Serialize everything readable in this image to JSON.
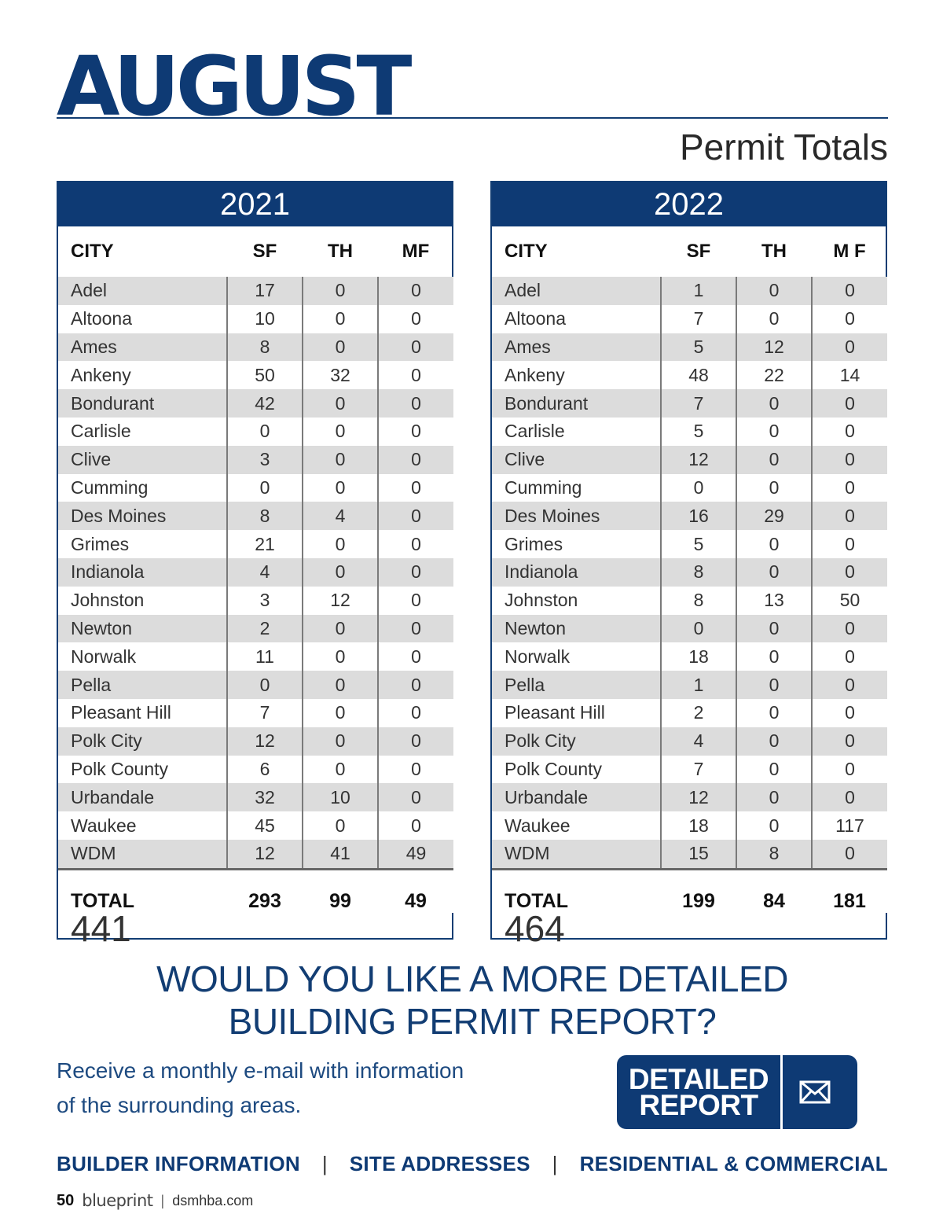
{
  "header": {
    "month": "AUGUST",
    "subtitle": "Permit Totals"
  },
  "tables": [
    {
      "year": "2021",
      "columns": [
        "CITY",
        "SF",
        "TH",
        "MF"
      ],
      "rows": [
        [
          "Adel",
          "17",
          "0",
          "0"
        ],
        [
          "Altoona",
          "10",
          "0",
          "0"
        ],
        [
          "Ames",
          "8",
          "0",
          "0"
        ],
        [
          "Ankeny",
          "50",
          "32",
          "0"
        ],
        [
          "Bondurant",
          "42",
          "0",
          "0"
        ],
        [
          "Carlisle",
          "0",
          "0",
          "0"
        ],
        [
          "Clive",
          "3",
          "0",
          "0"
        ],
        [
          "Cumming",
          "0",
          "0",
          "0"
        ],
        [
          "Des Moines",
          "8",
          "4",
          "0"
        ],
        [
          "Grimes",
          "21",
          "0",
          "0"
        ],
        [
          "Indianola",
          "4",
          "0",
          "0"
        ],
        [
          "Johnston",
          "3",
          "12",
          "0"
        ],
        [
          "Newton",
          "2",
          "0",
          "0"
        ],
        [
          "Norwalk",
          "11",
          "0",
          "0"
        ],
        [
          "Pella",
          "0",
          "0",
          "0"
        ],
        [
          "Pleasant Hill",
          "7",
          "0",
          "0"
        ],
        [
          "Polk City",
          "12",
          "0",
          "0"
        ],
        [
          "Polk County",
          "6",
          "0",
          "0"
        ],
        [
          "Urbandale",
          "32",
          "10",
          "0"
        ],
        [
          "Waukee",
          "45",
          "0",
          "0"
        ],
        [
          "WDM",
          "12",
          "41",
          "49"
        ]
      ],
      "total_label": "TOTAL",
      "totals": [
        "293",
        "99",
        "49"
      ],
      "grand_total": "441"
    },
    {
      "year": "2022",
      "columns": [
        "CITY",
        "SF",
        "TH",
        "M F"
      ],
      "rows": [
        [
          "Adel",
          "1",
          "0",
          "0"
        ],
        [
          "Altoona",
          "7",
          "0",
          "0"
        ],
        [
          "Ames",
          "5",
          "12",
          "0"
        ],
        [
          "Ankeny",
          "48",
          "22",
          "14"
        ],
        [
          "Bondurant",
          "7",
          "0",
          "0"
        ],
        [
          "Carlisle",
          "5",
          "0",
          "0"
        ],
        [
          "Clive",
          "12",
          "0",
          "0"
        ],
        [
          "Cumming",
          "0",
          "0",
          "0"
        ],
        [
          "Des Moines",
          "16",
          "29",
          "0"
        ],
        [
          "Grimes",
          "5",
          "0",
          "0"
        ],
        [
          "Indianola",
          "8",
          "0",
          "0"
        ],
        [
          "Johnston",
          "8",
          "13",
          "50"
        ],
        [
          "Newton",
          "0",
          "0",
          "0"
        ],
        [
          "Norwalk",
          "18",
          "0",
          "0"
        ],
        [
          "Pella",
          "1",
          "0",
          "0"
        ],
        [
          "Pleasant Hill",
          "2",
          "0",
          "0"
        ],
        [
          "Polk City",
          "4",
          "0",
          "0"
        ],
        [
          "Polk County",
          "7",
          "0",
          "0"
        ],
        [
          "Urbandale",
          "12",
          "0",
          "0"
        ],
        [
          "Waukee",
          "18",
          "0",
          "117"
        ],
        [
          "WDM",
          "15",
          "8",
          "0"
        ]
      ],
      "total_label": "TOTAL",
      "totals": [
        "199",
        "84",
        "181"
      ],
      "grand_total": "464"
    }
  ],
  "cta": {
    "heading_line1": "WOULD YOU LIKE A MORE DETAILED",
    "heading_line2": "BUILDING PERMIT REPORT?",
    "text_line1": "Receive a monthly e-mail with information",
    "text_line2": "of the surrounding areas.",
    "button_label": "DETAILED\nREPORT",
    "button_icon": "envelope-icon"
  },
  "links": [
    "BUILDER INFORMATION",
    "|",
    "SITE ADDRESSES",
    "|",
    "RESIDENTIAL & COMMERCIAL"
  ],
  "footer": {
    "page_number": "50",
    "brand": "blueprint",
    "separator": "|",
    "site": "dsmhba.com"
  },
  "colors": {
    "primary": "#0e3a74",
    "row_stripe": "#dcdcdc",
    "cta_text": "#1d4a80"
  }
}
